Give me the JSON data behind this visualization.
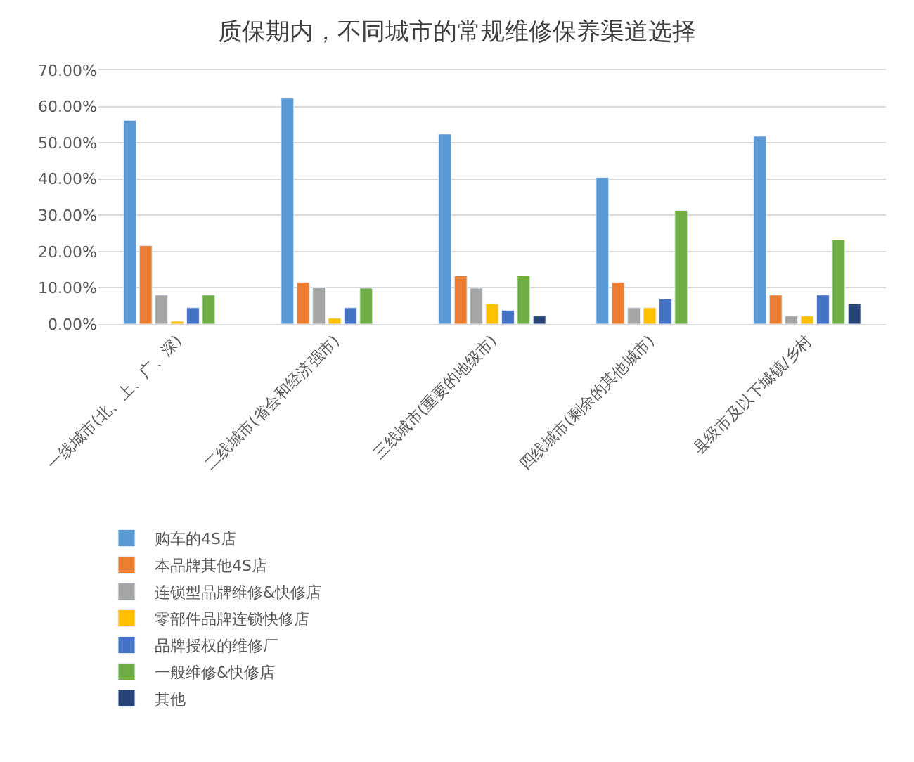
{
  "chart_data": {
    "type": "bar",
    "title": "质保期内，不同城市的常规维修保养渠道选择",
    "categories": [
      "一线城市(北、上、广、深)",
      "二线城市(省会和经济强市)",
      "三线城市(重要的地级市)",
      "四线城市(剩余的其他城市)",
      "县级市及以下城镇/乡村"
    ],
    "series": [
      {
        "name": "购车的4S店",
        "color": "#5b9bd5",
        "values": [
          56.2,
          62.3,
          52.4,
          40.4,
          51.8
        ]
      },
      {
        "name": "本品牌其他4S店",
        "color": "#ed7d31",
        "values": [
          21.6,
          11.5,
          13.3,
          11.5,
          8.0
        ]
      },
      {
        "name": "连锁型品牌维修&快修店",
        "color": "#a5a5a5",
        "values": [
          8.0,
          10.2,
          9.9,
          4.5,
          2.2
        ]
      },
      {
        "name": "零部件品牌连锁快修店",
        "color": "#ffc000",
        "values": [
          0.8,
          1.6,
          5.6,
          4.5,
          2.2
        ]
      },
      {
        "name": "品牌授权的维修厂",
        "color": "#4472c4",
        "values": [
          4.5,
          4.5,
          3.8,
          6.9,
          8.0
        ]
      },
      {
        "name": "一般维修&快修店",
        "color": "#70ad47",
        "values": [
          8.0,
          9.9,
          13.3,
          31.3,
          23.2
        ]
      },
      {
        "name": "其他",
        "color": "#264478",
        "values": [
          null,
          null,
          2.2,
          null,
          5.6
        ]
      }
    ],
    "ylim": [
      0,
      70
    ],
    "yticks": [
      {
        "value": 0,
        "label": "0.00%"
      },
      {
        "value": 10,
        "label": "10.00%"
      },
      {
        "value": 20,
        "label": "20.00%"
      },
      {
        "value": 30,
        "label": "30.00%"
      },
      {
        "value": 40,
        "label": "40.00%"
      },
      {
        "value": 50,
        "label": "50.00%"
      },
      {
        "value": 60,
        "label": "60.00%"
      },
      {
        "value": 70,
        "label": "70.00%"
      }
    ],
    "grid": "y",
    "legend": "bottom left"
  }
}
